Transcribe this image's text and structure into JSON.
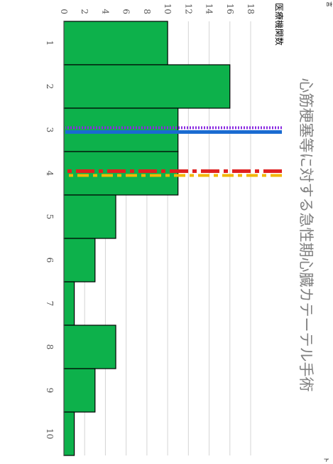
{
  "chart_data": {
    "type": "bar",
    "orientation": "rotated-90-clockwise",
    "title": "心筋梗塞等に対する急性期心臓カテーテル手術",
    "ylabel": "医療機関数",
    "xlabel": "",
    "categories": [
      "1",
      "2",
      "3",
      "4",
      "5",
      "6",
      "7",
      "8",
      "9",
      "10"
    ],
    "values": [
      10,
      16,
      11,
      11,
      5,
      3,
      1,
      5,
      3,
      1
    ],
    "ylim": [
      0,
      18
    ],
    "yticks": [
      0,
      2,
      4,
      6,
      8,
      10,
      12,
      14,
      16,
      18
    ],
    "grid": true,
    "bar_color": "#0db14b",
    "reference_lines": [
      {
        "style": "solid",
        "color": "#1a6bd1",
        "position": 2.5
      },
      {
        "style": "dotted",
        "color": "#8a2be2",
        "position": 2.5
      },
      {
        "style": "dashed",
        "color": "#e02020",
        "position": 3.5
      },
      {
        "style": "dashed",
        "color": "#f2b705",
        "position": 3.5
      }
    ]
  },
  "corner_marks": [
    "言",
    "ト"
  ]
}
